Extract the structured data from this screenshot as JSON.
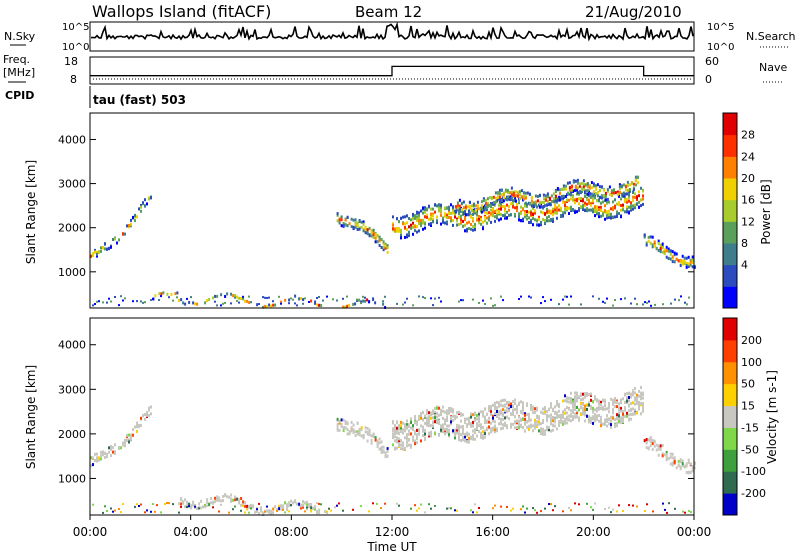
{
  "header": {
    "site": "Wallops Island (fitACF)",
    "beam": "Beam 12",
    "date": "21/Aug/2010"
  },
  "nsky_panel": {
    "left_label": "N.Sky",
    "right_label": "N.Search",
    "left_ticks": [
      "10^5",
      "10^0"
    ],
    "right_ticks": [
      "10^5",
      "10^0"
    ]
  },
  "freq_panel": {
    "left_label_top": "Freq.",
    "left_label_unit": "[MHz]",
    "right_label": "Nave",
    "left_ticks": [
      "18",
      "8"
    ],
    "right_ticks": [
      "60",
      "0"
    ],
    "freq_steps": [
      {
        "t": 0,
        "mhz": 10.5
      },
      {
        "t": 12.0,
        "mhz": 15.0
      },
      {
        "t": 22.0,
        "mhz": 10.5
      },
      {
        "t": 24.0,
        "mhz": 10.5
      }
    ]
  },
  "cpid_panel": {
    "label": "CPID",
    "text": "tau (fast) 503"
  },
  "chart_data": [
    {
      "type": "heatmap",
      "name": "Power",
      "ylabel": "Slant Range [km]",
      "ylim": [
        180,
        4600
      ],
      "yticks": [
        "1000",
        "2000",
        "3000",
        "4000"
      ],
      "xlim_hours": [
        0,
        24
      ],
      "colorbar_label": "Power [dB]",
      "colorbar_ticks": [
        "28",
        "24",
        "20",
        "16",
        "12",
        "8",
        "4"
      ],
      "colorbar_colors": [
        "#0000ff",
        "#2c4bbf",
        "#3d7d8c",
        "#5aa05a",
        "#a8cc2c",
        "#f0d000",
        "#ff8000",
        "#ff3000",
        "#e00000"
      ],
      "bands": [
        {
          "t0": 0.0,
          "t1": 2.4,
          "r0": 1250,
          "r1": 2700,
          "thick": 180
        },
        {
          "t0": 2.4,
          "t1": 3.5,
          "r0": 330,
          "r1": 560,
          "thick": 80
        },
        {
          "t0": 3.5,
          "t1": 11.7,
          "r0": 430,
          "r1": 260,
          "thick": 70
        },
        {
          "t0": 9.8,
          "t1": 11.8,
          "r0": 2350,
          "r1": 1550,
          "thick": 250
        },
        {
          "t0": 12.0,
          "t1": 22.0,
          "r0": 2150,
          "r1": 2650,
          "thick": 500
        },
        {
          "t0": 14.5,
          "t1": 21.8,
          "r0": 2550,
          "r1": 3000,
          "thick": 300
        },
        {
          "t0": 22.0,
          "t1": 24.0,
          "r0": 1650,
          "r1": 1300,
          "thick": 250
        }
      ]
    },
    {
      "type": "heatmap",
      "name": "Velocity",
      "ylabel": "Slant Range [km]",
      "ylim": [
        180,
        4600
      ],
      "yticks": [
        "1000",
        "2000",
        "3000",
        "4000"
      ],
      "xlim_hours": [
        0,
        24
      ],
      "colorbar_label": "Velocity [m s-1]",
      "colorbar_ticks": [
        "200",
        "100",
        "50",
        "15",
        "-15",
        "-50",
        "-100",
        "-200"
      ],
      "colorbar_colors": [
        "#0000c8",
        "#2f6b4f",
        "#3ea03c",
        "#7ed84a",
        "#c8c8c0",
        "#ffd000",
        "#ff9000",
        "#ff4000",
        "#e00000"
      ],
      "bands": [
        {
          "t0": 0.0,
          "t1": 2.4,
          "r0": 1300,
          "r1": 2500,
          "thick": 220
        },
        {
          "t0": 3.5,
          "t1": 9.5,
          "r0": 580,
          "r1": 300,
          "thick": 160
        },
        {
          "t0": 9.8,
          "t1": 11.8,
          "r0": 2350,
          "r1": 1600,
          "thick": 300
        },
        {
          "t0": 12.0,
          "t1": 22.0,
          "r0": 2100,
          "r1": 2700,
          "thick": 650
        },
        {
          "t0": 22.0,
          "t1": 24.0,
          "r0": 1750,
          "r1": 1350,
          "thick": 300
        }
      ]
    }
  ],
  "xaxis": {
    "label": "Time UT",
    "ticks": [
      "00:00",
      "04:00",
      "08:00",
      "12:00",
      "16:00",
      "20:00",
      "00:00"
    ]
  }
}
